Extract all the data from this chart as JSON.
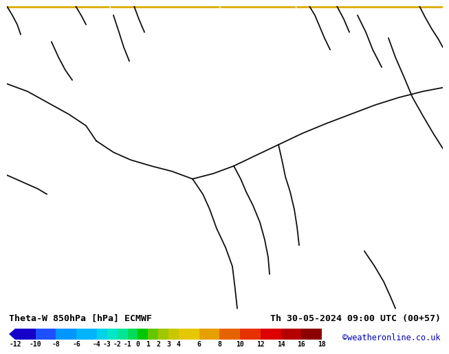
{
  "title_left": "Theta-W 850hPa [hPa] ECMWF",
  "title_right": "Th 30-05-2024 09:00 UTC (00+57)",
  "credit": "©weatheronline.co.uk",
  "colorbar_ticks": [
    -12,
    -10,
    -8,
    -6,
    -4,
    -3,
    -2,
    -1,
    0,
    1,
    2,
    3,
    4,
    6,
    8,
    10,
    12,
    14,
    16,
    18
  ],
  "colorbar_colors": [
    "#1400c8",
    "#1e50ff",
    "#0096ff",
    "#00b4ff",
    "#00d2e6",
    "#00e6c8",
    "#00e696",
    "#00dc5a",
    "#00c800",
    "#64c800",
    "#a0c800",
    "#c8c800",
    "#e6c800",
    "#e6a000",
    "#e66400",
    "#e63200",
    "#dc0000",
    "#b40000",
    "#8c0000",
    "#640000"
  ],
  "map_main_color": "#cc0000",
  "border_top_color": "#ddaa00",
  "bottom_bg": "#ffffff",
  "credit_color": "#0000bb",
  "title_fontsize": 9.5,
  "credit_fontsize": 8.5,
  "tick_fontsize": 7
}
